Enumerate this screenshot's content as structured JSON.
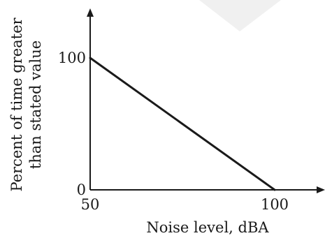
{
  "chart_data": {
    "type": "line",
    "title": "",
    "xlabel": "Noise level, dBA",
    "ylabel_lines": [
      "Percent of time greater",
      "than stated value"
    ],
    "xlim": [
      50,
      112
    ],
    "ylim": [
      0,
      113
    ],
    "x_ticks": [
      {
        "value": 50,
        "label": "50"
      },
      {
        "value": 100,
        "label": "100"
      }
    ],
    "y_ticks": [
      {
        "value": 0,
        "label": "0"
      },
      {
        "value": 100,
        "label": "100"
      }
    ],
    "grid": false,
    "legend": "none",
    "series": [
      {
        "x": [
          50,
          100
        ],
        "y": [
          100,
          0
        ]
      }
    ],
    "colors": {
      "line": "#1a1a1a",
      "axes": "#1a1a1a",
      "watermark": "#f0f0f0"
    }
  }
}
